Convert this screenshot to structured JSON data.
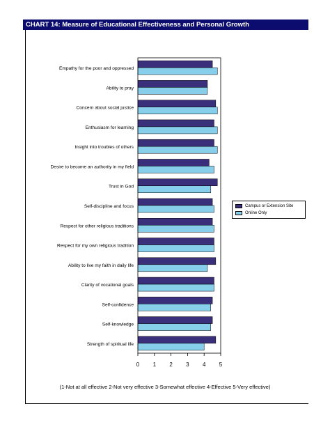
{
  "title": "CHART 14: Measure of Educational Effectiveness and Personal Growth",
  "footnote": "(1-Not at all effective  2-Not very effective  3-Somewhat effective  4-Effective  5-Very effective)",
  "colors": {
    "campus": "#3a2f7a",
    "online": "#87ceeb",
    "title_bg": "#0c0c6e"
  },
  "chart_data": {
    "type": "bar",
    "orientation": "horizontal",
    "categories": [
      "Empathy for the poor and oppressed",
      "Ability to pray",
      "Concern about social justice",
      "Enthusiasm for learning",
      "Insight into troubles of others",
      "Desire to become an authority in my field",
      "Trust in God",
      "Self-discipline and focus",
      "Respect for other religious traditions",
      "Respect for my own religious tradition",
      "Ability to live my faith in daily life",
      "Clarity of vocational goals",
      "Self-confidence",
      "Self-knowledge",
      "Strength of spiritual life"
    ],
    "series": [
      {
        "name": "Campus or Extension Site",
        "values": [
          4.5,
          4.2,
          4.7,
          4.6,
          4.6,
          4.3,
          4.8,
          4.5,
          4.5,
          4.6,
          4.7,
          4.6,
          4.5,
          4.5,
          4.7
        ]
      },
      {
        "name": "Online Only",
        "values": [
          4.8,
          4.2,
          4.8,
          4.8,
          4.8,
          4.6,
          4.4,
          4.6,
          4.6,
          4.6,
          4.2,
          4.6,
          4.4,
          4.4,
          4.0
        ]
      }
    ],
    "xlim": [
      0,
      5
    ],
    "xticks": [
      "0",
      "1",
      "2",
      "3",
      "4",
      "5"
    ],
    "grid": false,
    "legend_position": "right"
  }
}
